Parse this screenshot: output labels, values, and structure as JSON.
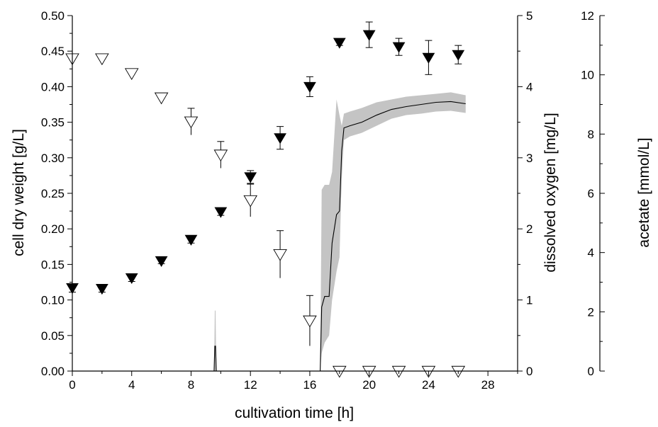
{
  "chart_data": {
    "type": "scatter",
    "xlabel": "cultivation time [h]",
    "xlim": [
      0,
      30
    ],
    "xticks": [
      0,
      4,
      8,
      12,
      16,
      20,
      24,
      28
    ],
    "y_axes": [
      {
        "id": "cdw",
        "label": "cell dry weight [g/L]",
        "ylim": [
          0,
          0.5
        ],
        "ticks": [
          "0.00",
          "0.05",
          "0.10",
          "0.15",
          "0.20",
          "0.25",
          "0.30",
          "0.35",
          "0.40",
          "0.45",
          "0.50"
        ],
        "side": "left"
      },
      {
        "id": "do",
        "label": "dissolved oxygen [mg/L]",
        "ylim": [
          0,
          5
        ],
        "ticks": [
          "0",
          "1",
          "2",
          "3",
          "4",
          "5"
        ],
        "side": "right"
      },
      {
        "id": "acetate",
        "label": "acetate [mmol/L]",
        "ylim": [
          0,
          12
        ],
        "ticks": [
          "0",
          "2",
          "4",
          "6",
          "8",
          "10",
          "12"
        ],
        "side": "right-offset"
      }
    ],
    "series": [
      {
        "axis": "cdw",
        "marker": "filled-triangle-down",
        "color": "#000000",
        "x": [
          0,
          2,
          4,
          6,
          8,
          10,
          12,
          14,
          16,
          18,
          20,
          22,
          24,
          26
        ],
        "y": [
          0.117,
          0.116,
          0.131,
          0.155,
          0.185,
          0.224,
          0.273,
          0.328,
          0.4,
          0.462,
          0.473,
          0.456,
          0.441,
          0.445
        ],
        "err": [
          0.006,
          0.005,
          0.005,
          0.004,
          0.005,
          0.005,
          0.009,
          0.016,
          0.014,
          0.004,
          0.018,
          0.012,
          0.024,
          0.013
        ]
      },
      {
        "axis": "acetate",
        "marker": "open-triangle-down",
        "color": "#000000",
        "x": [
          0,
          2,
          4,
          6,
          8,
          10,
          12,
          14,
          16,
          18,
          20,
          22,
          24,
          26
        ],
        "y": [
          10.55,
          10.55,
          10.05,
          9.23,
          8.42,
          7.3,
          5.76,
          3.94,
          1.7,
          0.0,
          0.0,
          0.0,
          0.0,
          0.0
        ],
        "err": [
          0.1,
          0.1,
          0.1,
          0.15,
          0.45,
          0.45,
          0.55,
          0.8,
          0.85,
          0,
          0,
          0,
          0,
          0
        ]
      },
      {
        "axis": "do",
        "marker": "line-with-band",
        "color": "#000000",
        "band_color": "#c4c4c4",
        "x": [
          0,
          9.55,
          9.6,
          9.65,
          9.7,
          13.5,
          16.7,
          16.8,
          17.0,
          17.3,
          17.5,
          17.8,
          18.0,
          18.15,
          18.3,
          18.7,
          19.5,
          20.5,
          21.5,
          22.5,
          23.5,
          24.5,
          25.5,
          26.5
        ],
        "y": [
          0,
          0,
          0.35,
          0.35,
          0,
          0,
          0,
          0.9,
          1.05,
          1.05,
          1.8,
          2.2,
          2.25,
          3.1,
          3.42,
          3.45,
          3.5,
          3.6,
          3.68,
          3.72,
          3.75,
          3.78,
          3.79,
          3.76
        ],
        "band_low": [
          0,
          0,
          0,
          0,
          0,
          0,
          0,
          0.25,
          0.4,
          0.5,
          1.0,
          1.4,
          1.6,
          2.7,
          3.25,
          3.3,
          3.35,
          3.45,
          3.55,
          3.6,
          3.62,
          3.65,
          3.66,
          3.63
        ],
        "band_high": [
          0,
          0,
          0.85,
          0.85,
          0,
          0,
          0,
          2.55,
          2.62,
          2.62,
          2.8,
          3.82,
          3.6,
          3.45,
          3.62,
          3.65,
          3.7,
          3.78,
          3.82,
          3.86,
          3.88,
          3.9,
          3.92,
          3.88
        ]
      }
    ]
  }
}
